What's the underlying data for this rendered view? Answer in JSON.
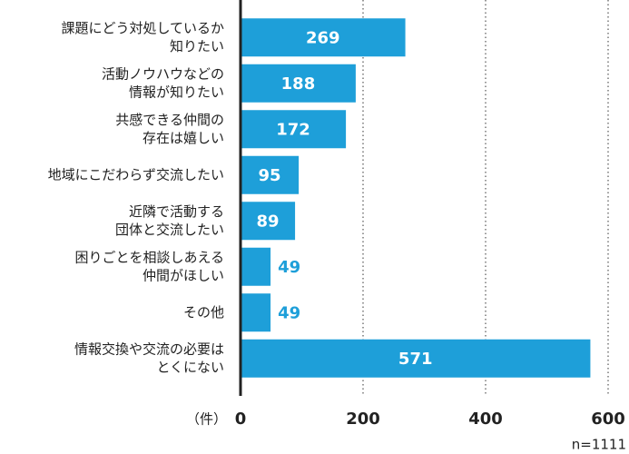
{
  "chart_data": {
    "type": "bar",
    "orientation": "horizontal",
    "categories": [
      [
        "課題にどう対処しているか",
        "知りたい"
      ],
      [
        "活動ノウハウなどの",
        "情報が知りたい"
      ],
      [
        "共感できる仲間の",
        "存在は嬉しい"
      ],
      [
        "地域にこだわらず交流したい"
      ],
      [
        "近隣で活動する",
        "団体と交流したい"
      ],
      [
        "困りごとを相談しあえる",
        "仲間がほしい"
      ],
      [
        "その他"
      ],
      [
        "情報交換や交流の必要は",
        "とくにない"
      ]
    ],
    "values": [
      269,
      188,
      172,
      95,
      89,
      49,
      49,
      571
    ],
    "color": "#1e9fd9",
    "xlim": [
      0,
      600
    ],
    "xticks": [
      0,
      200,
      400,
      600
    ],
    "x_axis_label": "（件）",
    "note": "n=1111",
    "grid": true
  }
}
